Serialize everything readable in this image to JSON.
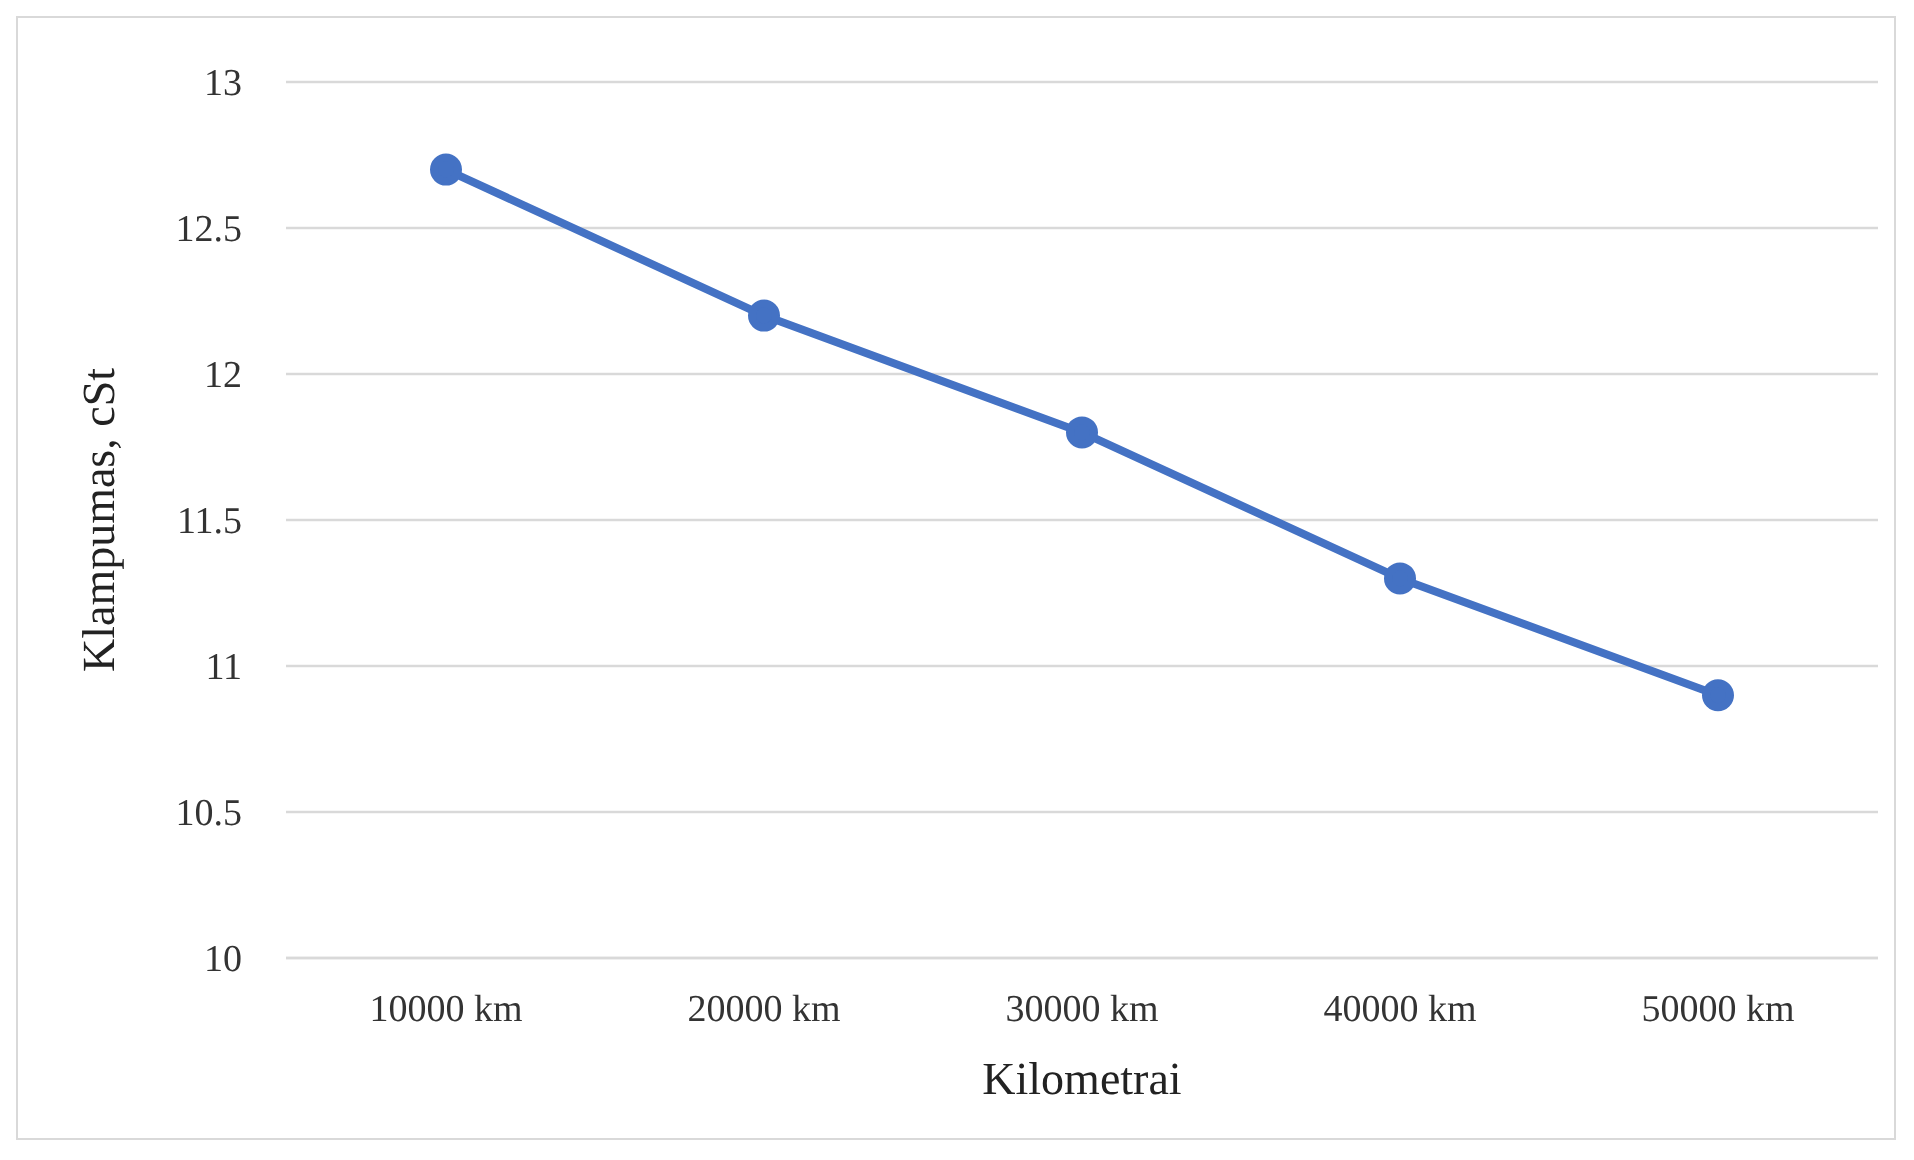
{
  "chart_data": {
    "type": "line",
    "xlabel": "Kilometrai",
    "ylabel": "Klampumas, cSt",
    "categories": [
      "10000 km",
      "20000 km",
      "30000 km",
      "40000 km",
      "50000 km"
    ],
    "series": [
      {
        "color": "#4472c4",
        "values": [
          12.7,
          12.2,
          11.8,
          11.3,
          10.9
        ]
      }
    ],
    "ylim": [
      10,
      13
    ],
    "yticks": [
      10,
      10.5,
      11,
      11.5,
      12,
      12.5,
      13
    ],
    "grid": "y",
    "marker": "circle",
    "line_style": "solid",
    "legend": false
  }
}
